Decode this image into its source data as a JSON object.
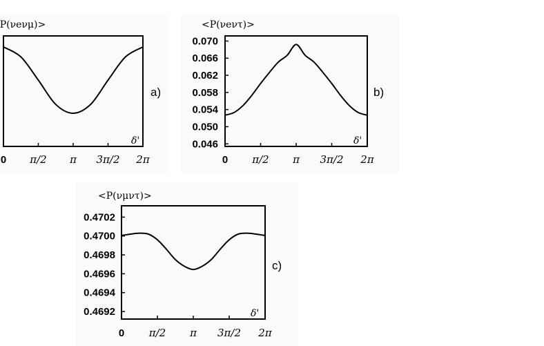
{
  "chart_data": [
    {
      "type": "line",
      "panel_label": "a)",
      "ylabel": "<P(νeνμ)>",
      "xlabel": "δ'",
      "x_ticks": [
        "0",
        "π/2",
        "π",
        "3π/2",
        "2π"
      ],
      "y_ticks": [],
      "xlim": [
        0,
        6.2832
      ],
      "ylim": [
        0.0,
        1.0
      ],
      "series": [
        {
          "x": [
            0,
            0.7854,
            1.5708,
            2.3562,
            3.1416,
            3.927,
            4.7124,
            5.4978,
            6.2832
          ],
          "y": [
            0.9,
            0.81,
            0.6,
            0.38,
            0.3,
            0.38,
            0.6,
            0.81,
            0.9
          ]
        }
      ]
    },
    {
      "type": "line",
      "panel_label": "b)",
      "ylabel": "<P(νeντ)>",
      "xlabel": "δ'",
      "x_ticks": [
        "0",
        "π/2",
        "π",
        "3π/2",
        "2π"
      ],
      "y_ticks": [
        "0.046",
        "0.050",
        "0.054",
        "0.058",
        "0.062",
        "0.066",
        "0.070"
      ],
      "xlim": [
        0,
        6.2832
      ],
      "ylim": [
        0.0454,
        0.0712
      ],
      "series": [
        {
          "x": [
            0,
            0.3927,
            0.7854,
            1.1781,
            1.5708,
            1.9635,
            2.3562,
            2.7489,
            3.1416,
            3.5343,
            3.927,
            4.3197,
            4.7124,
            5.1051,
            5.4978,
            5.8905,
            6.2832
          ],
          "y": [
            0.0527,
            0.0533,
            0.0549,
            0.0573,
            0.0601,
            0.0627,
            0.0651,
            0.0667,
            0.0692,
            0.0667,
            0.0651,
            0.0627,
            0.0601,
            0.0573,
            0.0549,
            0.0533,
            0.0527
          ]
        }
      ]
    },
    {
      "type": "line",
      "panel_label": "c)",
      "ylabel": "<P(νμντ)>",
      "xlabel": "δ'",
      "x_ticks": [
        "0",
        "π/2",
        "π",
        "3π/2",
        "2π"
      ],
      "y_ticks": [
        "0.4692",
        "0.4694",
        "0.4696",
        "0.4698",
        "0.4700",
        "0.4702"
      ],
      "xlim": [
        0,
        6.2832
      ],
      "ylim": [
        0.46912,
        0.47032
      ],
      "series": [
        {
          "x": [
            0,
            0.3927,
            0.7854,
            1.1781,
            1.5708,
            1.9635,
            2.3562,
            2.7489,
            3.1416,
            3.5343,
            3.927,
            4.3197,
            4.7124,
            5.1051,
            5.4978,
            5.8905,
            6.2832
          ],
          "y": [
            0.470005,
            0.47002,
            0.47003,
            0.47002,
            0.46996,
            0.46986,
            0.46975,
            0.46968,
            0.469645,
            0.46968,
            0.46975,
            0.46986,
            0.46996,
            0.47002,
            0.47003,
            0.47002,
            0.470005
          ]
        }
      ]
    }
  ]
}
